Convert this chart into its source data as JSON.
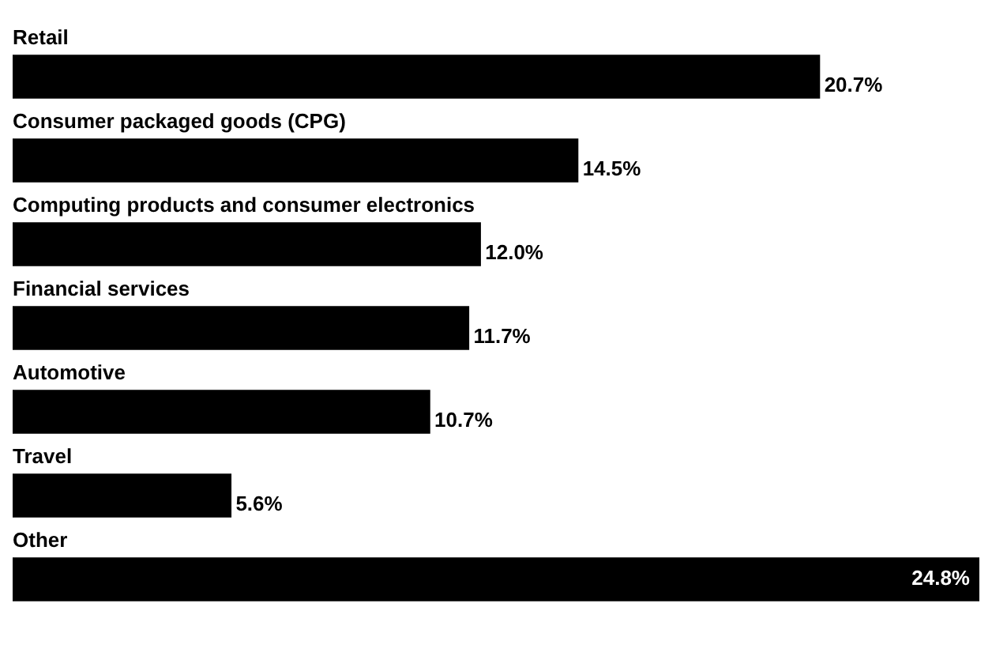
{
  "chart_data": {
    "type": "bar",
    "orientation": "horizontal",
    "categories": [
      "Retail",
      "Consumer packaged goods (CPG)",
      "Computing products and consumer electronics",
      "Financial services",
      "Automotive",
      "Travel",
      "Other"
    ],
    "values": [
      20.7,
      14.5,
      12.0,
      11.7,
      10.7,
      5.6,
      24.8
    ],
    "value_labels": [
      "20.7%",
      "14.5%",
      "12.0%",
      "11.7%",
      "10.7%",
      "5.6%",
      "24.8%"
    ],
    "color": "#000000",
    "legend": false,
    "tick_labels": false
  }
}
